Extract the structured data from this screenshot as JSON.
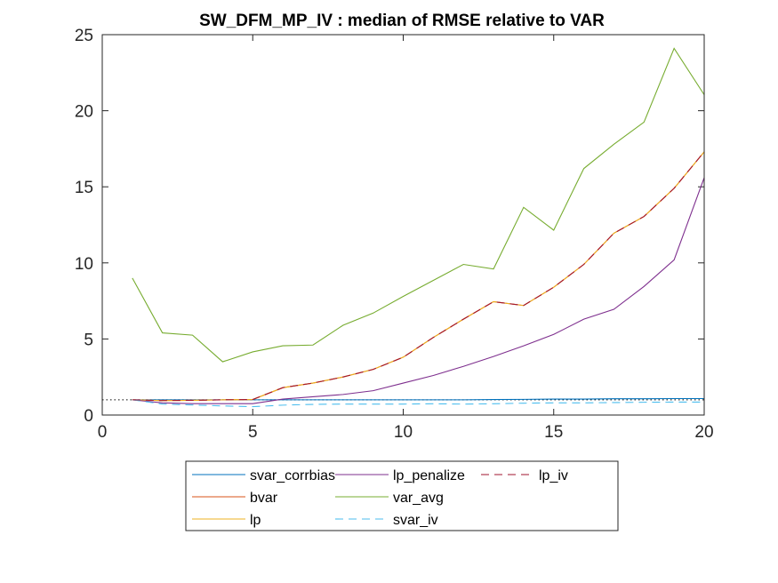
{
  "chart_data": {
    "type": "line",
    "title": "SW_DFM_MP_IV : median of RMSE relative to VAR",
    "xlabel": "",
    "ylabel": "",
    "xlim": [
      0,
      20
    ],
    "ylim": [
      0,
      25
    ],
    "xticks": [
      0,
      5,
      10,
      15,
      20
    ],
    "yticks": [
      0,
      5,
      10,
      15,
      20,
      25
    ],
    "grid": false,
    "legend_position": "bottom-outside",
    "reference_line": {
      "y": 1,
      "style": "dotted",
      "color": "#000000"
    },
    "x": [
      1,
      2,
      3,
      4,
      5,
      6,
      7,
      8,
      9,
      10,
      11,
      12,
      13,
      14,
      15,
      16,
      17,
      18,
      19,
      20
    ],
    "series": [
      {
        "name": "svar_corrbias",
        "color": "#0072BD",
        "dash": "solid",
        "values": [
          1.0,
          1.0,
          1.0,
          1.0,
          1.0,
          1.0,
          1.0,
          1.0,
          1.0,
          1.0,
          1.0,
          1.0,
          1.02,
          1.03,
          1.05,
          1.05,
          1.07,
          1.07,
          1.08,
          1.08
        ]
      },
      {
        "name": "bvar",
        "color": "#D95319",
        "dash": "solid",
        "values": [
          1.0,
          0.95,
          0.97,
          1.0,
          1.02,
          1.8,
          2.1,
          2.5,
          3.0,
          3.8,
          5.1,
          6.3,
          7.45,
          7.2,
          8.4,
          9.9,
          11.95,
          13.05,
          14.9,
          17.3
        ]
      },
      {
        "name": "lp",
        "color": "#EDB120",
        "dash": "solid",
        "values": [
          1.0,
          0.95,
          0.97,
          1.0,
          1.02,
          1.8,
          2.1,
          2.5,
          3.0,
          3.8,
          5.1,
          6.3,
          7.45,
          7.2,
          8.4,
          9.9,
          11.95,
          13.05,
          14.9,
          17.3
        ]
      },
      {
        "name": "lp_penalize",
        "color": "#7E2F8E",
        "dash": "solid",
        "values": [
          1.0,
          0.8,
          0.75,
          0.75,
          0.75,
          1.05,
          1.2,
          1.35,
          1.6,
          2.1,
          2.6,
          3.2,
          3.85,
          4.55,
          5.3,
          6.3,
          6.95,
          8.45,
          10.2,
          15.6
        ]
      },
      {
        "name": "var_avg",
        "color": "#77AC30",
        "dash": "solid",
        "values": [
          9.0,
          5.4,
          5.25,
          3.5,
          4.15,
          4.55,
          4.6,
          5.9,
          6.7,
          7.8,
          8.85,
          9.9,
          9.6,
          13.65,
          12.15,
          16.2,
          17.8,
          19.25,
          24.1,
          21.05
        ]
      },
      {
        "name": "svar_iv",
        "color": "#4DBEEE",
        "dash": "dashed",
        "values": [
          1.0,
          0.72,
          0.66,
          0.6,
          0.55,
          0.65,
          0.7,
          0.72,
          0.72,
          0.72,
          0.74,
          0.72,
          0.74,
          0.78,
          0.8,
          0.8,
          0.82,
          0.84,
          0.85,
          0.85
        ]
      },
      {
        "name": "lp_iv",
        "color": "#A2142F",
        "dash": "dashed",
        "values": [
          1.0,
          0.95,
          0.97,
          1.0,
          1.02,
          1.8,
          2.1,
          2.5,
          3.0,
          3.8,
          5.1,
          6.3,
          7.45,
          7.2,
          8.4,
          9.9,
          11.95,
          13.05,
          14.9,
          17.3
        ]
      }
    ],
    "legend_order": [
      [
        "svar_corrbias",
        "lp_penalize",
        "lp_iv"
      ],
      [
        "bvar",
        "var_avg"
      ],
      [
        "lp",
        "svar_iv"
      ]
    ]
  }
}
